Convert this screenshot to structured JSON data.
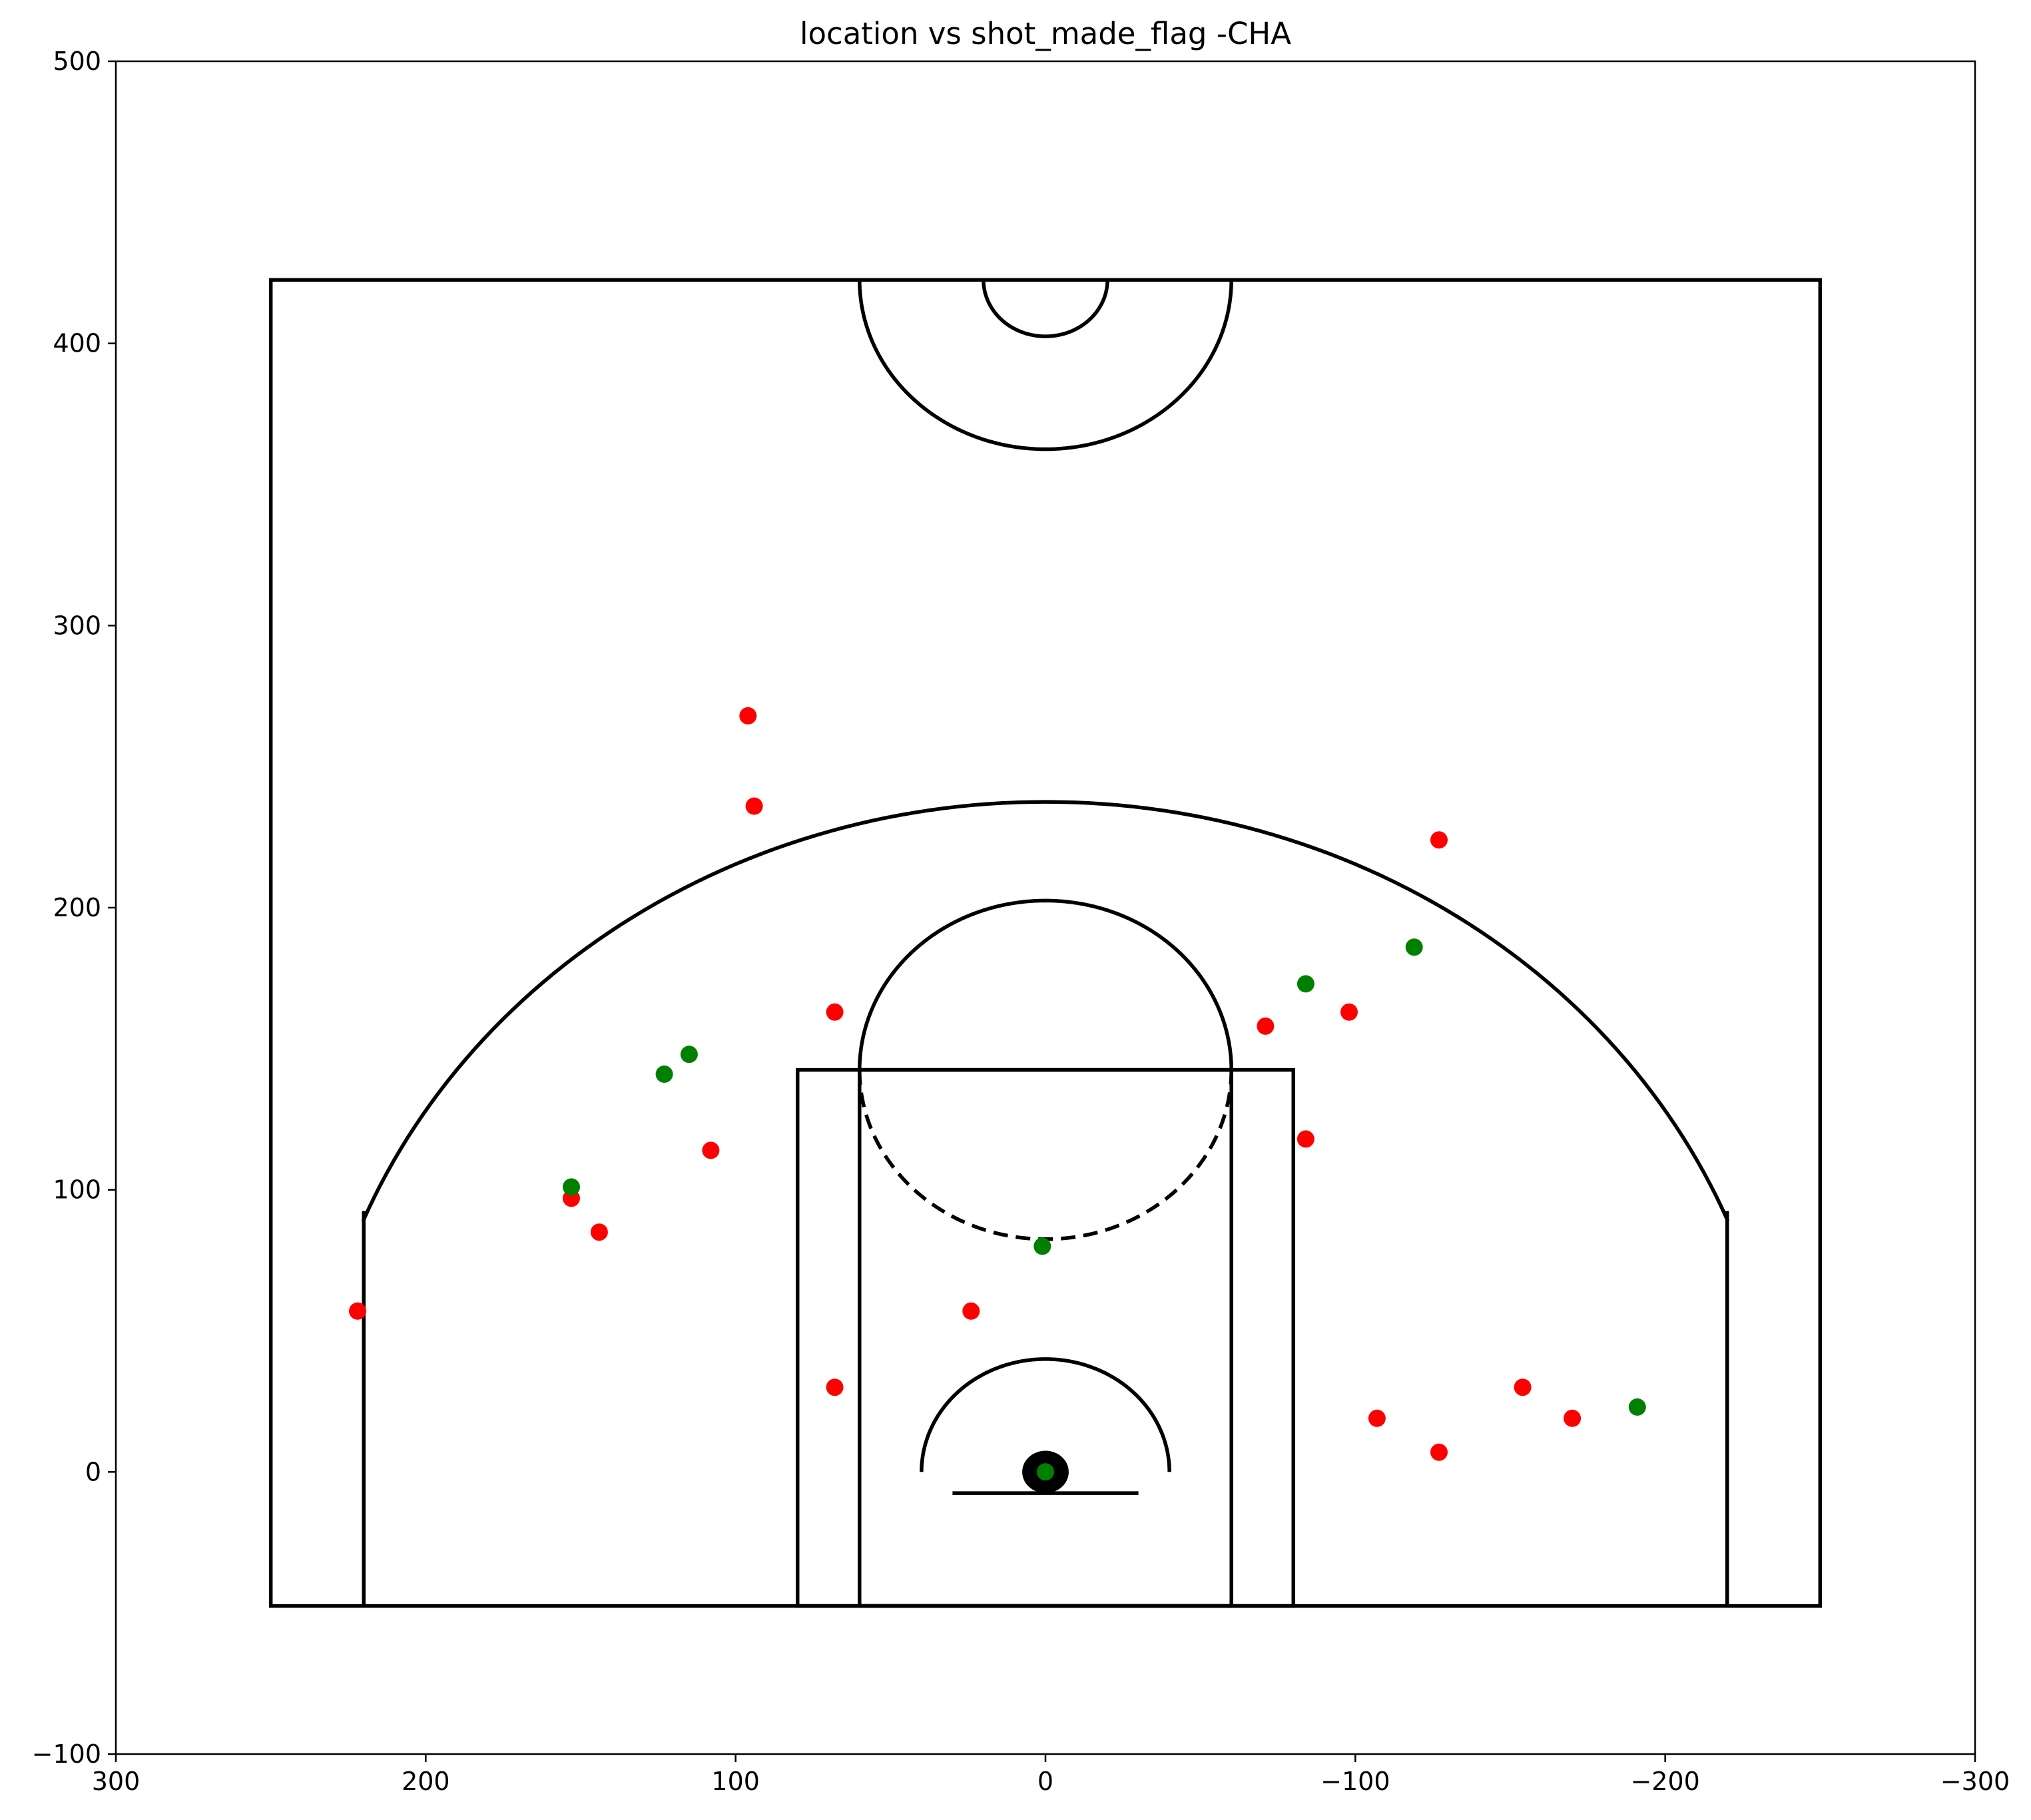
{
  "chart_data": {
    "type": "scatter",
    "title": "location vs shot_made_flag -CHA",
    "xlabel": "",
    "ylabel": "",
    "xlim": [
      300,
      -300
    ],
    "ylim": [
      -100,
      500
    ],
    "x_ticks": [
      "300",
      "200",
      "100",
      "0",
      "−100",
      "−200",
      "−300"
    ],
    "x_tick_values": [
      300,
      200,
      100,
      0,
      -100,
      -200,
      -300
    ],
    "y_ticks": [
      "−100",
      "0",
      "100",
      "200",
      "300",
      "400",
      "500"
    ],
    "y_tick_values": [
      -100,
      0,
      100,
      200,
      300,
      400,
      500
    ],
    "grid": false,
    "legend": "none",
    "series": [
      {
        "color": "#ff0000",
        "points": [
          {
            "x": 96,
            "y": 268
          },
          {
            "x": 94,
            "y": 236
          },
          {
            "x": -127,
            "y": 224
          },
          {
            "x": 68,
            "y": 163
          },
          {
            "x": -98,
            "y": 163
          },
          {
            "x": -71,
            "y": 158
          },
          {
            "x": -84,
            "y": 118
          },
          {
            "x": 108,
            "y": 114
          },
          {
            "x": 153,
            "y": 97
          },
          {
            "x": 144,
            "y": 85
          },
          {
            "x": 222,
            "y": 57
          },
          {
            "x": 24,
            "y": 57
          },
          {
            "x": 68,
            "y": 30
          },
          {
            "x": -154,
            "y": 30
          },
          {
            "x": -107,
            "y": 19
          },
          {
            "x": -170,
            "y": 19
          },
          {
            "x": -127,
            "y": 7
          }
        ]
      },
      {
        "color": "#008000",
        "points": [
          {
            "x": -119,
            "y": 186
          },
          {
            "x": -84,
            "y": 173
          },
          {
            "x": 115,
            "y": 148
          },
          {
            "x": 123,
            "y": 141
          },
          {
            "x": 153,
            "y": 101
          },
          {
            "x": 1,
            "y": 80
          },
          {
            "x": -191,
            "y": 23
          },
          {
            "x": 0,
            "y": 0
          }
        ]
      }
    ]
  }
}
